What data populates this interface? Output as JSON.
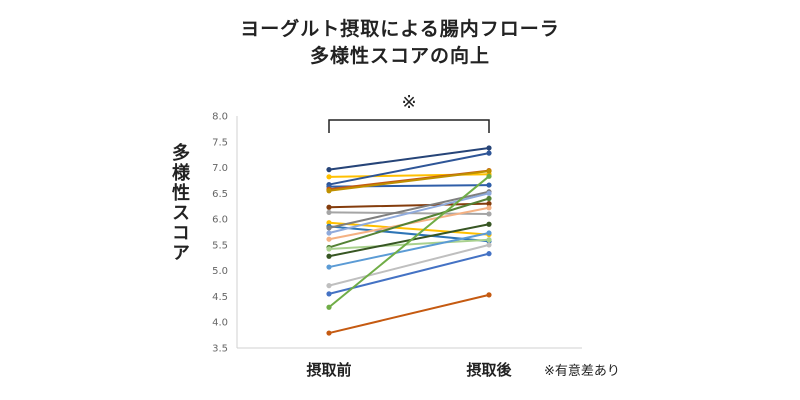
{
  "chart_data": {
    "type": "line",
    "title": [
      "ヨーグルト摂取による腸内フローラ",
      "多様性スコアの向上"
    ],
    "ylabel": "多様性スコア",
    "categories": [
      "摂取前",
      "摂取後"
    ],
    "ylim": [
      3.5,
      8.0
    ],
    "yticks": [
      "3.5",
      "4.0",
      "4.5",
      "5.0",
      "5.5",
      "6.0",
      "6.5",
      "7.0",
      "7.5",
      "8.0"
    ],
    "significance_mark": "※",
    "footnote": "※有意差あり",
    "grid": false,
    "series": [
      {
        "values": [
          6.96,
          7.38
        ],
        "color": "#264478"
      },
      {
        "values": [
          6.82,
          6.87
        ],
        "color": "#FFC000"
      },
      {
        "values": [
          6.67,
          7.28
        ],
        "color": "#2E5597"
      },
      {
        "values": [
          6.63,
          6.66
        ],
        "color": "#2F5EA8"
      },
      {
        "values": [
          6.58,
          6.94
        ],
        "color": "#C55A11"
      },
      {
        "values": [
          6.55,
          6.93
        ],
        "color": "#BF9000"
      },
      {
        "values": [
          6.23,
          6.3
        ],
        "color": "#843C0C"
      },
      {
        "values": [
          6.13,
          6.1
        ],
        "color": "#A5A5A5"
      },
      {
        "values": [
          5.93,
          5.7
        ],
        "color": "#FFC000"
      },
      {
        "values": [
          5.86,
          5.57
        ],
        "color": "#2E75B6"
      },
      {
        "values": [
          5.83,
          6.53
        ],
        "color": "#7F7F7F"
      },
      {
        "values": [
          5.73,
          6.5
        ],
        "color": "#8FAADC"
      },
      {
        "values": [
          5.61,
          6.22
        ],
        "color": "#F4B183"
      },
      {
        "values": [
          5.45,
          6.4
        ],
        "color": "#548235"
      },
      {
        "values": [
          5.42,
          5.6
        ],
        "color": "#A9D18E"
      },
      {
        "values": [
          5.28,
          5.9
        ],
        "color": "#375623"
      },
      {
        "values": [
          5.07,
          5.73
        ],
        "color": "#5B9BD5"
      },
      {
        "values": [
          4.71,
          5.5
        ],
        "color": "#BFBFBF"
      },
      {
        "values": [
          4.55,
          5.33
        ],
        "color": "#4472C4"
      },
      {
        "values": [
          4.29,
          6.83
        ],
        "color": "#70AD47"
      },
      {
        "values": [
          3.79,
          4.53
        ],
        "color": "#C55A11"
      }
    ]
  }
}
